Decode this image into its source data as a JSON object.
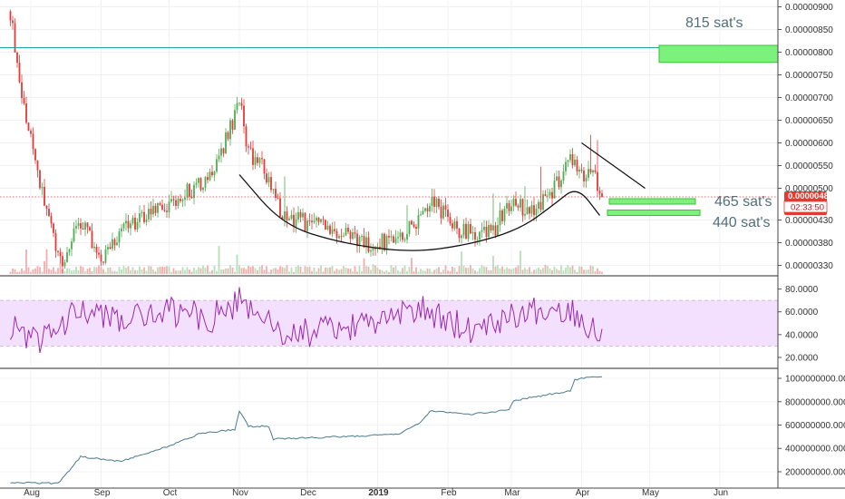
{
  "colors": {
    "up": "#4caf50",
    "down": "#e53935",
    "resistance_line": "#26a69a",
    "zone_fill": "#7cf27c",
    "zone_stroke": "#3cbf3c",
    "rsi_line": "#9c27b0",
    "rsi_band": "#f3e0ff",
    "obv_line": "#4a7a8c",
    "current_price": "#e53935",
    "annotation": "#50707a"
  },
  "annotations": {
    "sat815": "815 sat's",
    "sat465": "465 sat's",
    "sat440": "440 sat's"
  },
  "price_badge": {
    "price": "0.00000481",
    "countdown": "02:33:50"
  },
  "chart_data": [
    {
      "type": "candlestick",
      "panel": "price",
      "price_axis_ticks": [
        "0.00000900",
        "0.00000850",
        "0.00000800",
        "0.00000750",
        "0.00000700",
        "0.00000650",
        "0.00000600",
        "0.00000550",
        "0.00000500",
        "0.00000430",
        "0.00000380",
        "0.00000330"
      ],
      "time_axis_labels": [
        "Aug",
        "Sep",
        "Oct",
        "Nov",
        "Dec",
        "2019",
        "Feb",
        "Mar",
        "Apr",
        "May",
        "Jun"
      ],
      "ylim": [
        3.11e-06,
        9.15e-06
      ],
      "current_price": 4.81e-06,
      "resistance_level": 8.1e-06,
      "target_zones": [
        {
          "label_key": "sat815",
          "low": 7.775e-06,
          "high": 8.15e-06
        },
        {
          "label_key": "sat465",
          "low": 4.65e-06,
          "high": 4.77e-06
        },
        {
          "label_key": "sat440",
          "low": 4.4e-06,
          "high": 4.52e-06
        }
      ],
      "price_path_anchors": [
        {
          "date": "2018-07-23",
          "price": 8.9e-06
        },
        {
          "date": "2018-07-28",
          "price": 7e-06
        },
        {
          "date": "2018-08-03",
          "price": 5.6e-06
        },
        {
          "date": "2018-08-09",
          "price": 4.3e-06
        },
        {
          "date": "2018-08-15",
          "price": 3.3e-06
        },
        {
          "date": "2018-08-22",
          "price": 4.4e-06
        },
        {
          "date": "2018-09-01",
          "price": 3.5e-06
        },
        {
          "date": "2018-09-14",
          "price": 4.2e-06
        },
        {
          "date": "2018-09-28",
          "price": 4.6e-06
        },
        {
          "date": "2018-10-20",
          "price": 5.2e-06
        },
        {
          "date": "2018-11-01",
          "price": 6.9e-06
        },
        {
          "date": "2018-11-05",
          "price": 5.8e-06
        },
        {
          "date": "2018-11-12",
          "price": 5.4e-06
        },
        {
          "date": "2018-11-20",
          "price": 4.4e-06
        },
        {
          "date": "2018-12-10",
          "price": 4.1e-06
        },
        {
          "date": "2018-12-28",
          "price": 3.75e-06
        },
        {
          "date": "2019-01-10",
          "price": 3.9e-06
        },
        {
          "date": "2019-01-20",
          "price": 4.3e-06
        },
        {
          "date": "2019-01-25",
          "price": 4.7e-06
        },
        {
          "date": "2019-02-05",
          "price": 4.1e-06
        },
        {
          "date": "2019-02-20",
          "price": 4e-06
        },
        {
          "date": "2019-03-01",
          "price": 4.7e-06
        },
        {
          "date": "2019-03-10",
          "price": 4.5e-06
        },
        {
          "date": "2019-03-20",
          "price": 5e-06
        },
        {
          "date": "2019-03-28",
          "price": 5.7e-06
        },
        {
          "date": "2019-04-01",
          "price": 5.2e-06
        },
        {
          "date": "2019-04-06",
          "price": 5.3e-06
        },
        {
          "date": "2019-04-10",
          "price": 4.81e-06
        }
      ],
      "rounded_bottom_curve": [
        {
          "date": "2018-11-01",
          "price": 5.3e-06
        },
        {
          "date": "2018-11-20",
          "price": 4.2e-06
        },
        {
          "date": "2018-12-15",
          "price": 3.8e-06
        },
        {
          "date": "2019-01-15",
          "price": 3.58e-06
        },
        {
          "date": "2019-02-10",
          "price": 3.75e-06
        },
        {
          "date": "2019-03-05",
          "price": 4.1e-06
        },
        {
          "date": "2019-03-20",
          "price": 4.65e-06
        },
        {
          "date": "2019-03-30",
          "price": 5.05e-06
        },
        {
          "date": "2019-04-09",
          "price": 4.4e-06
        }
      ],
      "descending_trendline": [
        {
          "date": "2019-04-01",
          "price": 6e-06
        },
        {
          "date": "2019-04-29",
          "price": 5e-06
        }
      ]
    },
    {
      "type": "line",
      "panel": "rsi",
      "y_axis_ticks": [
        "80.0000",
        "60.0000",
        "40.0000",
        "20.0000"
      ],
      "ylim": [
        12,
        90
      ],
      "band": [
        30,
        70
      ],
      "path_anchors": [
        {
          "date": "2018-07-23",
          "value": 48
        },
        {
          "date": "2018-08-05",
          "value": 32
        },
        {
          "date": "2018-08-20",
          "value": 60
        },
        {
          "date": "2018-09-10",
          "value": 52
        },
        {
          "date": "2018-10-01",
          "value": 60
        },
        {
          "date": "2018-10-20",
          "value": 55
        },
        {
          "date": "2018-11-01",
          "value": 70
        },
        {
          "date": "2018-11-20",
          "value": 40
        },
        {
          "date": "2018-12-20",
          "value": 45
        },
        {
          "date": "2019-01-20",
          "value": 62
        },
        {
          "date": "2019-02-10",
          "value": 45
        },
        {
          "date": "2019-03-05",
          "value": 60
        },
        {
          "date": "2019-03-28",
          "value": 62
        },
        {
          "date": "2019-04-10",
          "value": 38
        }
      ]
    },
    {
      "type": "line",
      "panel": "obv",
      "y_axis_ticks": [
        "1000000000.0000",
        "800000000.0000",
        "600000000.0000",
        "400000000.0000",
        "200000000.0000"
      ],
      "ylim": [
        60000000,
        1070000000
      ],
      "path_anchors": [
        {
          "date": "2018-07-23",
          "value": 110000000
        },
        {
          "date": "2018-08-13",
          "value": 100000000
        },
        {
          "date": "2018-08-20",
          "value": 260000000
        },
        {
          "date": "2018-08-23",
          "value": 330000000
        },
        {
          "date": "2018-09-10",
          "value": 290000000
        },
        {
          "date": "2018-10-01",
          "value": 420000000
        },
        {
          "date": "2018-10-15",
          "value": 530000000
        },
        {
          "date": "2018-10-30",
          "value": 560000000
        },
        {
          "date": "2018-11-01",
          "value": 720000000
        },
        {
          "date": "2018-11-05",
          "value": 590000000
        },
        {
          "date": "2018-11-14",
          "value": 590000000
        },
        {
          "date": "2018-11-16",
          "value": 480000000
        },
        {
          "date": "2018-12-15",
          "value": 500000000
        },
        {
          "date": "2019-01-10",
          "value": 520000000
        },
        {
          "date": "2019-01-20",
          "value": 620000000
        },
        {
          "date": "2019-01-24",
          "value": 720000000
        },
        {
          "date": "2019-02-10",
          "value": 690000000
        },
        {
          "date": "2019-02-28",
          "value": 730000000
        },
        {
          "date": "2019-03-02",
          "value": 810000000
        },
        {
          "date": "2019-03-20",
          "value": 870000000
        },
        {
          "date": "2019-03-27",
          "value": 890000000
        },
        {
          "date": "2019-03-29",
          "value": 990000000
        },
        {
          "date": "2019-04-10",
          "value": 1020000000
        }
      ]
    }
  ]
}
